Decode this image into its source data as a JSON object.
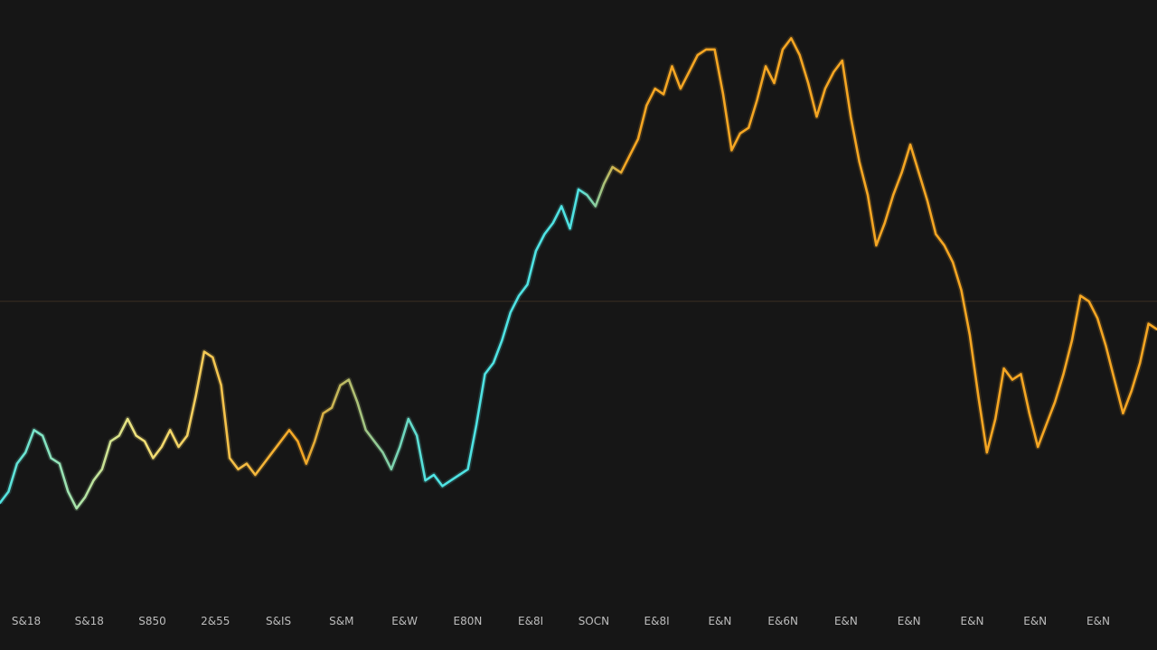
{
  "chart_data": {
    "type": "line",
    "title": "",
    "xlabel": "",
    "ylabel": "",
    "grid": false,
    "legend": "none",
    "colors": {
      "background": "#161616",
      "line_low": "#4fe3e3",
      "line_mid": "#f2e27a",
      "line_high": "#f5a623",
      "midline": "#3a2e22",
      "tick_text": "#bdbdbd"
    },
    "ylim": [
      0,
      100
    ],
    "reference_line_y": 51,
    "x_tick_labels": [
      "S&18",
      "S&18",
      "S850",
      "2&55",
      "S&IS",
      "S&M",
      "E&W",
      "E80N",
      "E&8I",
      "SOCN",
      "E&8I",
      "E&N",
      "E&6N",
      "E&N",
      "E&N",
      "E&N",
      "E&N",
      "E&N"
    ],
    "series": [
      {
        "values": [
          15,
          17,
          22,
          24,
          28,
          27,
          23,
          22,
          17,
          14,
          16,
          19,
          21,
          26,
          27,
          30,
          27,
          26,
          23,
          25,
          28,
          25,
          27,
          34,
          42,
          41,
          36,
          23,
          21,
          22,
          20,
          22,
          24,
          26,
          28,
          26,
          22,
          26,
          31,
          32,
          36,
          37,
          33,
          28,
          26,
          24,
          21,
          25,
          30,
          27,
          19,
          20,
          18,
          19,
          20,
          21,
          29,
          38,
          40,
          44,
          49,
          52,
          54,
          60,
          63,
          65,
          68,
          64,
          71,
          70,
          68,
          72,
          75,
          74,
          77,
          80,
          86,
          89,
          88,
          93,
          89,
          92,
          95,
          96,
          96,
          88,
          78,
          81,
          82,
          87,
          93,
          90,
          96,
          98,
          95,
          90,
          84,
          89,
          92,
          94,
          84,
          76,
          70,
          61,
          65,
          70,
          74,
          79,
          74,
          69,
          63,
          61,
          58,
          53,
          45,
          34,
          24,
          30,
          39,
          37,
          38,
          31,
          25,
          29,
          33,
          38,
          44,
          52,
          51,
          48,
          43,
          37,
          31,
          35,
          40,
          47,
          46
        ]
      }
    ]
  }
}
